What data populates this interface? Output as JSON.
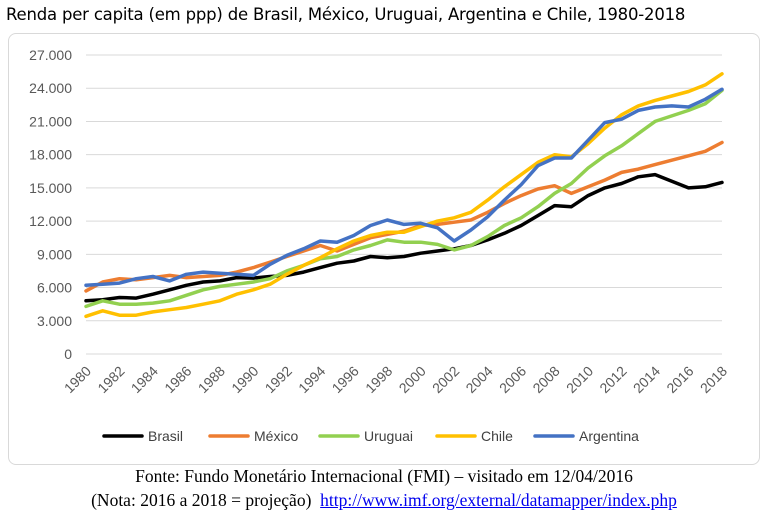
{
  "title": "Renda per capita (em ppp) de Brasil, México, Uruguai, Argentina e Chile, 1980-2018",
  "source": {
    "line1": "Fonte: Fundo Monetário Internacional (FMI) – visitado em 12/04/2016",
    "line2_prefix": "(Nota: 2016 a 2018 = projeção)",
    "url": "http://www.imf.org/external/datamapper/index.php"
  },
  "chart_data": {
    "type": "line",
    "title": "Renda per capita (em ppp) de Brasil, México, Uruguai, Argentina e Chile, 1980-2018",
    "xlabel": "",
    "ylabel": "",
    "ylim": [
      0,
      27000
    ],
    "y_ticks": [
      0,
      3000,
      6000,
      9000,
      12000,
      15000,
      18000,
      21000,
      24000,
      27000
    ],
    "y_tick_labels": [
      "0",
      "3.000",
      "6.000",
      "9.000",
      "12.000",
      "15.000",
      "18.000",
      "21.000",
      "24.000",
      "27.000"
    ],
    "x_tick_labels": [
      "1980",
      "1982",
      "1984",
      "1986",
      "1988",
      "1990",
      "1992",
      "1994",
      "1996",
      "1998",
      "2000",
      "2002",
      "2004",
      "2006",
      "2008",
      "2010",
      "2012",
      "2014",
      "2016",
      "2018"
    ],
    "grid": true,
    "legend_position": "bottom",
    "x": [
      1980,
      1981,
      1982,
      1983,
      1984,
      1985,
      1986,
      1987,
      1988,
      1989,
      1990,
      1991,
      1992,
      1993,
      1994,
      1995,
      1996,
      1997,
      1998,
      1999,
      2000,
      2001,
      2002,
      2003,
      2004,
      2005,
      2006,
      2007,
      2008,
      2009,
      2010,
      2011,
      2012,
      2013,
      2014,
      2015,
      2016,
      2017,
      2018
    ],
    "series": [
      {
        "name": "Brasil",
        "color": "#000000",
        "values": [
          4800,
          4900,
          5100,
          5050,
          5400,
          5800,
          6200,
          6500,
          6600,
          6900,
          6850,
          7000,
          7100,
          7400,
          7800,
          8200,
          8400,
          8800,
          8700,
          8800,
          9100,
          9300,
          9500,
          9800,
          10300,
          10900,
          11600,
          12500,
          13400,
          13300,
          14300,
          15000,
          15400,
          16000,
          16200,
          15600,
          15000,
          15100,
          15500
        ]
      },
      {
        "name": "México",
        "color": "#ed7d31",
        "values": [
          5700,
          6500,
          6800,
          6700,
          6900,
          7100,
          6900,
          7000,
          7100,
          7400,
          7800,
          8300,
          8800,
          9300,
          9800,
          9300,
          9900,
          10500,
          10800,
          11100,
          11600,
          11700,
          11900,
          12100,
          12800,
          13600,
          14300,
          14900,
          15200,
          14500,
          15100,
          15700,
          16400,
          16700,
          17100,
          17500,
          17900,
          18300,
          19100
        ]
      },
      {
        "name": "Uruguai",
        "color": "#92d050",
        "values": [
          4300,
          4800,
          4500,
          4500,
          4600,
          4800,
          5300,
          5800,
          6100,
          6300,
          6500,
          6800,
          7500,
          8000,
          8600,
          8800,
          9400,
          9800,
          10300,
          10100,
          10100,
          9900,
          9400,
          9800,
          10600,
          11600,
          12300,
          13300,
          14500,
          15400,
          16800,
          17900,
          18800,
          19900,
          21000,
          21500,
          22000,
          22600,
          23800
        ]
      },
      {
        "name": "Chile",
        "color": "#ffc000",
        "values": [
          3400,
          3900,
          3500,
          3500,
          3800,
          4000,
          4200,
          4500,
          4800,
          5400,
          5800,
          6300,
          7200,
          8000,
          8700,
          9500,
          10200,
          10700,
          11000,
          11000,
          11500,
          12000,
          12300,
          12800,
          13900,
          15100,
          16200,
          17300,
          18000,
          17800,
          19000,
          20400,
          21600,
          22400,
          22900,
          23300,
          23700,
          24300,
          25300
        ]
      },
      {
        "name": "Argentina",
        "color": "#4472c4",
        "values": [
          6200,
          6300,
          6400,
          6800,
          7000,
          6600,
          7200,
          7400,
          7300,
          7200,
          7100,
          8100,
          8900,
          9500,
          10200,
          10100,
          10700,
          11600,
          12100,
          11700,
          11800,
          11400,
          10200,
          11200,
          12400,
          13900,
          15300,
          17000,
          17700,
          17700,
          19300,
          20900,
          21200,
          22000,
          22300,
          22400,
          22300,
          23000,
          23900
        ]
      }
    ]
  }
}
